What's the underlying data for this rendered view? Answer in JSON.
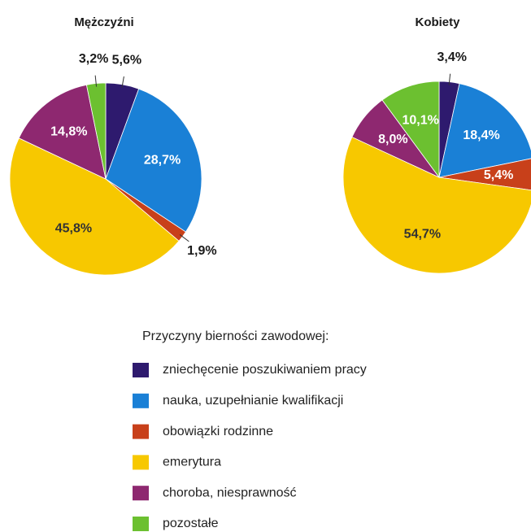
{
  "chart_data": [
    {
      "type": "pie",
      "title": "Mężczyźni",
      "values": [
        5.6,
        28.7,
        1.9,
        45.8,
        14.8,
        3.2
      ],
      "value_labels": [
        "5,6%",
        "28,7%",
        "1,9%",
        "45,8%",
        "14,8%",
        "3,2%"
      ]
    },
    {
      "type": "pie",
      "title": "Kobiety",
      "values": [
        3.4,
        18.4,
        5.4,
        54.7,
        8.0,
        10.1
      ],
      "value_labels": [
        "3,4%",
        "18,4%",
        "5,4%",
        "54,7%",
        "8,0%",
        "10,1%"
      ]
    }
  ],
  "legend": {
    "title": "Przyczyny bierności zawodowej:",
    "categories": [
      "zniechęcenie poszukiwaniem pracy",
      "nauka, uzupełnianie kwalifikacji",
      "obowiązki rodzinne",
      "emerytura",
      "choroba, niesprawność",
      "pozostałe"
    ],
    "colors": [
      "#2e1a6e",
      "#1a80d6",
      "#c8401a",
      "#f7c800",
      "#8e2870",
      "#6cc030"
    ]
  }
}
